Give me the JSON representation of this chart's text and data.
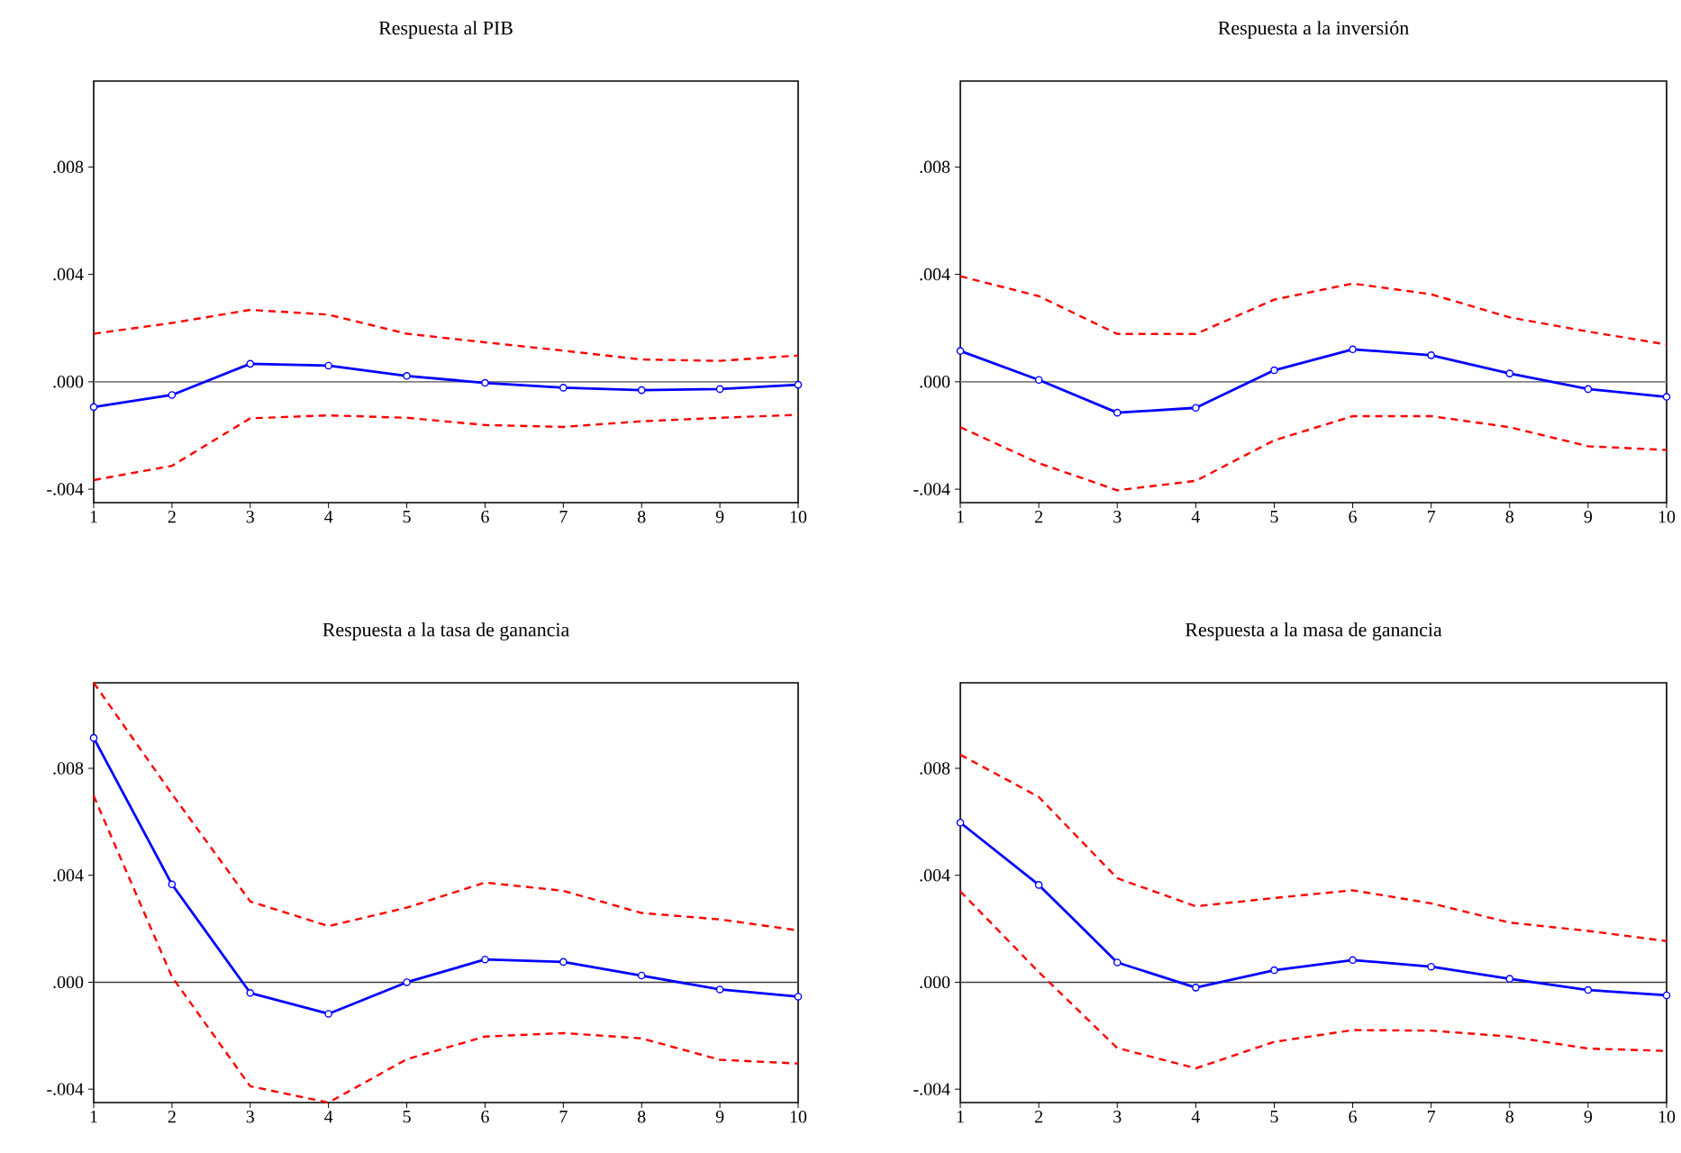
{
  "chart_data": [
    {
      "type": "line",
      "title": "Respuesta al PIB",
      "x": [
        1,
        2,
        3,
        4,
        5,
        6,
        7,
        8,
        9,
        10
      ],
      "xlim": [
        1,
        10
      ],
      "ylim": [
        -0.0045,
        0.0112
      ],
      "xticks": [
        1,
        2,
        3,
        4,
        5,
        6,
        7,
        8,
        9,
        10
      ],
      "yticks": [
        {
          "value": -0.004,
          "label": "-.004"
        },
        {
          "value": 0,
          "label": ".000"
        },
        {
          "value": 0.004,
          "label": ".004"
        },
        {
          "value": 0.008,
          "label": ".008"
        }
      ],
      "ref_lines": [
        {
          "axis": "y",
          "value": 0,
          "color": "#808080"
        }
      ],
      "series": [
        {
          "color": "#0000ff",
          "marker": "circle",
          "line_style": "solid",
          "values": [
            -0.00094,
            -0.00049,
            0.00067,
            0.0006,
            0.00022,
            -4e-05,
            -0.00022,
            -0.00031,
            -0.00027,
            -0.00011
          ]
        },
        {
          "color": "#ff0000",
          "marker": "none",
          "line_style": "dashed",
          "values": [
            0.00179,
            0.00219,
            0.00268,
            0.0025,
            0.00179,
            0.00147,
            0.00116,
            0.00083,
            0.00078,
            0.00098
          ]
        },
        {
          "color": "#ff0000",
          "marker": "none",
          "line_style": "dashed",
          "values": [
            -0.00366,
            -0.00313,
            -0.00136,
            -0.00125,
            -0.00134,
            -0.00161,
            -0.00168,
            -0.00147,
            -0.00134,
            -0.00123
          ]
        }
      ]
    },
    {
      "type": "line",
      "title": "Respuesta a la inversión",
      "x": [
        1,
        2,
        3,
        4,
        5,
        6,
        7,
        8,
        9,
        10
      ],
      "xlim": [
        1,
        10
      ],
      "ylim": [
        -0.0045,
        0.0112
      ],
      "xticks": [
        1,
        2,
        3,
        4,
        5,
        6,
        7,
        8,
        9,
        10
      ],
      "yticks": [
        {
          "value": -0.004,
          "label": "-.004"
        },
        {
          "value": 0,
          "label": ".000"
        },
        {
          "value": 0.004,
          "label": ".004"
        },
        {
          "value": 0.008,
          "label": ".008"
        }
      ],
      "ref_lines": [
        {
          "axis": "y",
          "value": 0,
          "color": "#808080"
        }
      ],
      "series": [
        {
          "color": "#0000ff",
          "marker": "circle",
          "line_style": "solid",
          "values": [
            0.00115,
            7e-05,
            -0.00115,
            -0.00097,
            0.00043,
            0.00121,
            0.00099,
            0.00031,
            -0.00027,
            -0.00056
          ]
        },
        {
          "color": "#ff0000",
          "marker": "none",
          "line_style": "dashed",
          "values": [
            0.00393,
            0.00319,
            0.00178,
            0.00178,
            0.00306,
            0.00366,
            0.00326,
            0.0024,
            0.00187,
            0.00139
          ]
        },
        {
          "color": "#ff0000",
          "marker": "none",
          "line_style": "dashed",
          "values": [
            -0.00169,
            -0.00303,
            -0.00404,
            -0.00369,
            -0.00218,
            -0.00128,
            -0.00128,
            -0.00169,
            -0.0024,
            -0.00254
          ]
        }
      ]
    },
    {
      "type": "line",
      "title": "Respuesta a la tasa de ganancia",
      "x": [
        1,
        2,
        3,
        4,
        5,
        6,
        7,
        8,
        9,
        10
      ],
      "xlim": [
        1,
        10
      ],
      "ylim": [
        -0.0045,
        0.0112
      ],
      "xticks": [
        1,
        2,
        3,
        4,
        5,
        6,
        7,
        8,
        9,
        10
      ],
      "yticks": [
        {
          "value": -0.004,
          "label": "-.004"
        },
        {
          "value": 0,
          "label": ".000"
        },
        {
          "value": 0.004,
          "label": ".004"
        },
        {
          "value": 0.008,
          "label": ".008"
        }
      ],
      "ref_lines": [
        {
          "axis": "y",
          "value": 0,
          "color": "#404040"
        }
      ],
      "series": [
        {
          "color": "#0000ff",
          "marker": "circle",
          "line_style": "solid",
          "values": [
            0.00914,
            0.00366,
            -0.0004,
            -0.00118,
            0.0,
            0.00085,
            0.00076,
            0.00025,
            -0.00027,
            -0.00054
          ]
        },
        {
          "color": "#ff0000",
          "marker": "none",
          "line_style": "dashed",
          "values": [
            0.0112,
            0.00704,
            0.00302,
            0.0021,
            0.00279,
            0.00373,
            0.00342,
            0.00259,
            0.00235,
            0.00194
          ]
        },
        {
          "color": "#ff0000",
          "marker": "none",
          "line_style": "dashed",
          "values": [
            0.00697,
            0.0002,
            -0.00389,
            -0.0045,
            -0.00288,
            -0.00203,
            -0.0019,
            -0.0021,
            -0.0029,
            -0.00304
          ]
        }
      ]
    },
    {
      "type": "line",
      "title": "Respuesta a la masa de ganancia",
      "x": [
        1,
        2,
        3,
        4,
        5,
        6,
        7,
        8,
        9,
        10
      ],
      "xlim": [
        1,
        10
      ],
      "ylim": [
        -0.0045,
        0.0112
      ],
      "xticks": [
        1,
        2,
        3,
        4,
        5,
        6,
        7,
        8,
        9,
        10
      ],
      "yticks": [
        {
          "value": -0.004,
          "label": "-.004"
        },
        {
          "value": 0,
          "label": ".000"
        },
        {
          "value": 0.004,
          "label": ".004"
        },
        {
          "value": 0.008,
          "label": ".008"
        }
      ],
      "ref_lines": [
        {
          "axis": "y",
          "value": 0,
          "color": "#404040"
        }
      ],
      "series": [
        {
          "color": "#0000ff",
          "marker": "circle",
          "line_style": "solid",
          "values": [
            0.00597,
            0.00364,
            0.00074,
            -0.0002,
            0.00045,
            0.00083,
            0.00058,
            0.00013,
            -0.00029,
            -0.00049
          ]
        },
        {
          "color": "#ff0000",
          "marker": "none",
          "line_style": "dashed",
          "values": [
            0.00851,
            0.00693,
            0.00389,
            0.00284,
            0.00315,
            0.00344,
            0.00295,
            0.00223,
            0.00192,
            0.00154
          ]
        },
        {
          "color": "#ff0000",
          "marker": "none",
          "line_style": "dashed",
          "values": [
            0.0034,
            0.00038,
            -0.00246,
            -0.00322,
            -0.00223,
            -0.00179,
            -0.00181,
            -0.00203,
            -0.00248,
            -0.00257
          ]
        }
      ]
    }
  ]
}
